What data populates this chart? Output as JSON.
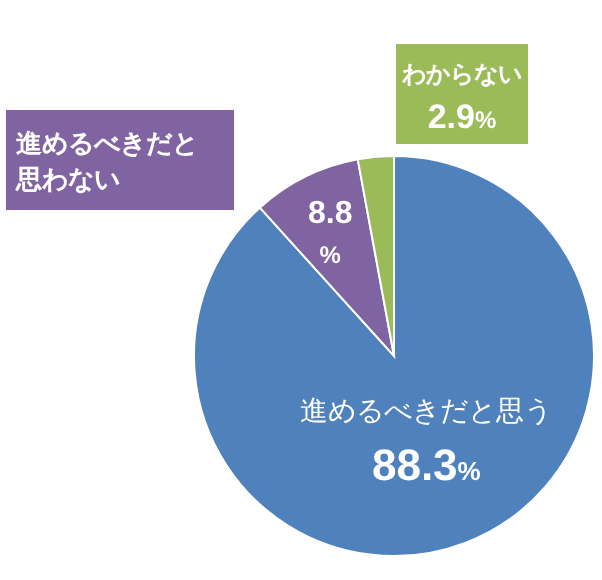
{
  "chart_data": {
    "type": "pie",
    "categories": [
      "進めるべきだと思う",
      "進めるべきだと思わない",
      "わからない"
    ],
    "values": [
      88.3,
      8.8,
      2.9
    ],
    "colors": [
      "#4f81bd",
      "#8064a2",
      "#9bbb59"
    ],
    "value_labels": [
      "88.3%",
      "8.8%",
      "2.9%"
    ]
  }
}
